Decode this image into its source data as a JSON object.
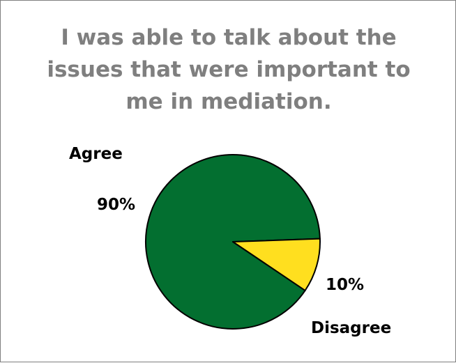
{
  "chart_data": {
    "type": "pie",
    "title": "I was able to talk about the issues that were important to me in mediation.",
    "categories": [
      "Agree",
      "Disagree"
    ],
    "values": [
      90,
      10
    ],
    "value_labels": [
      "90%",
      "10%"
    ],
    "colors": [
      "#036f30",
      "#ffdf1f"
    ],
    "legend": "none"
  }
}
